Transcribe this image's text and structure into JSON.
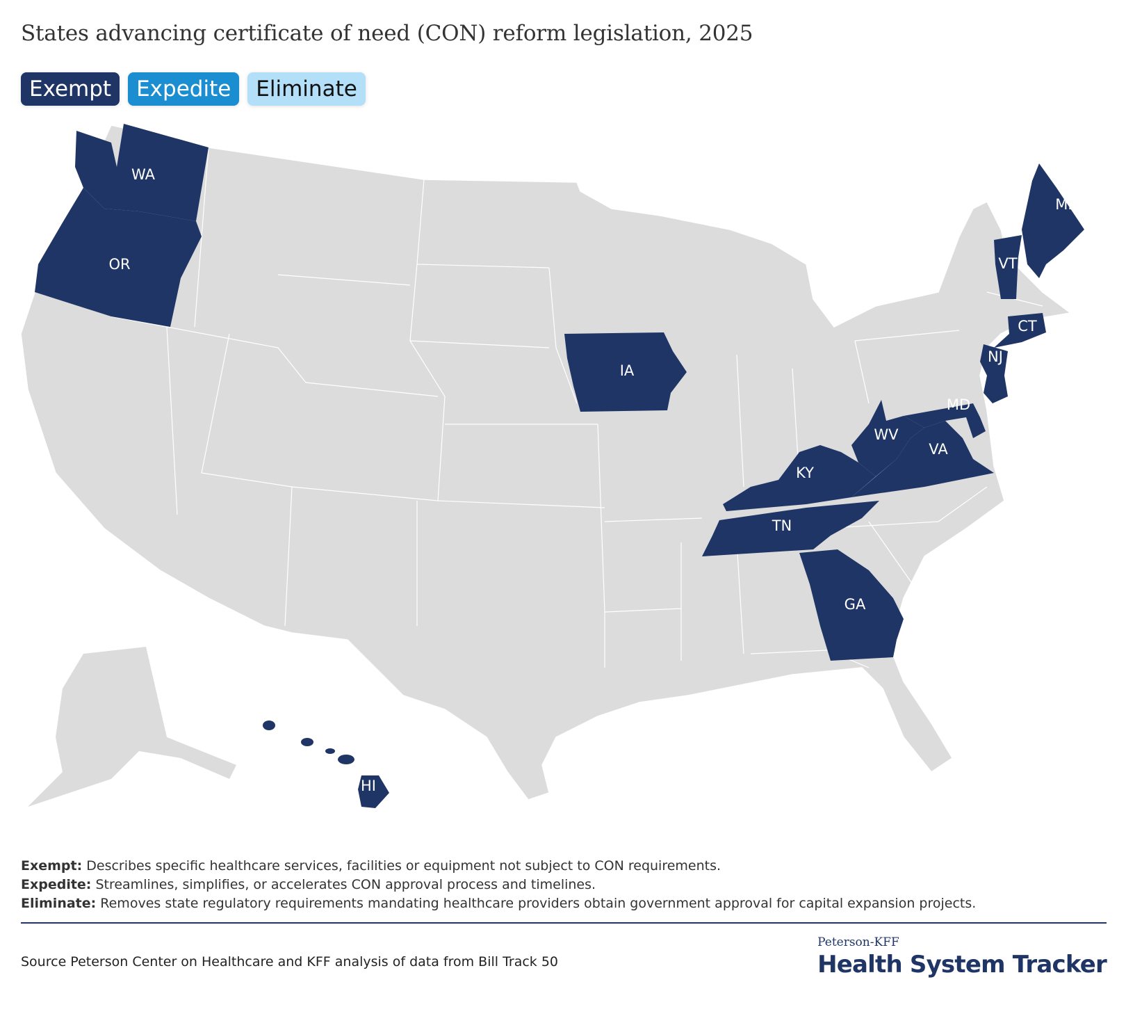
{
  "title": "States advancing certificate of need (CON) reform legislation, 2025",
  "tabs": [
    {
      "label": "Exempt",
      "color": "#1f3566",
      "text_color": "#ffffff"
    },
    {
      "label": "Expedite",
      "color": "#1b8ed2",
      "text_color": "#ffffff"
    },
    {
      "label": "Eliminate",
      "color": "#b3e0f8",
      "text_color": "#111111"
    }
  ],
  "map": {
    "highlight_color": "#1f3566",
    "base_color": "#dcdcdc",
    "highlighted_states": [
      "WA",
      "OR",
      "IA",
      "ME",
      "VT",
      "CT",
      "NJ",
      "MD",
      "VA",
      "WV",
      "KY",
      "TN",
      "GA",
      "HI"
    ]
  },
  "notes": [
    {
      "term": "Exempt:",
      "text": " Describes specific healthcare services, facilities or equipment not subject to CON requirements."
    },
    {
      "term": "Expedite:",
      "text": " Streamlines, simplifies, or accelerates CON approval process and timelines."
    },
    {
      "term": "Eliminate:",
      "text": " Removes state regulatory requirements mandating healthcare providers obtain government approval for capital expansion projects."
    }
  ],
  "source": "Source Peterson Center on Healthcare and KFF analysis of data from Bill Track 50",
  "logo": {
    "top": "Peterson-KFF",
    "main": "Health System Tracker"
  }
}
